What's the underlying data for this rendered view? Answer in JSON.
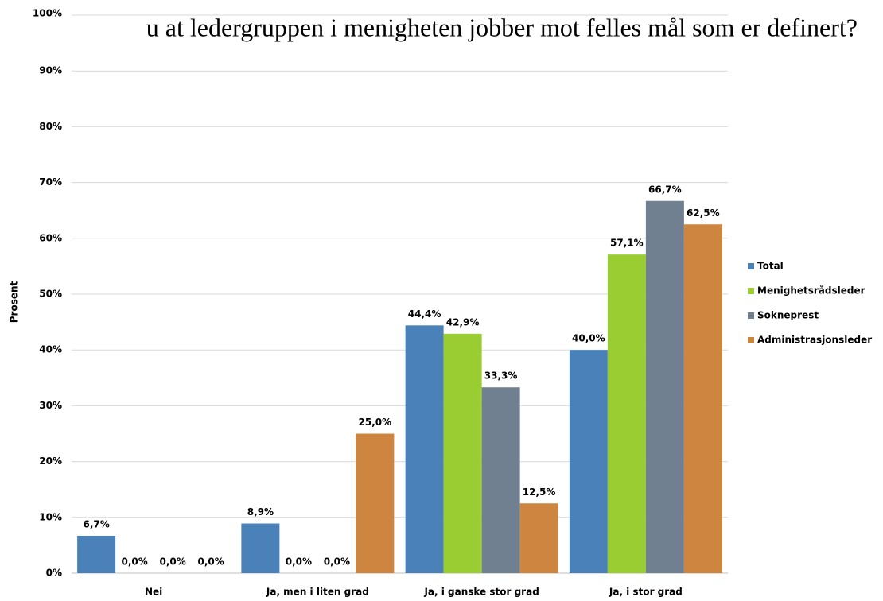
{
  "chart_data": {
    "type": "bar",
    "title": "u at ledergruppen i menigheten jobber mot felles mål som er definert?",
    "y_label": "Prosent",
    "categories": [
      "Nei",
      "Ja, men i liten grad",
      "Ja, i ganske stor grad",
      "Ja, i stor grad"
    ],
    "series": [
      {
        "name": "Total",
        "color": "#4a81b8",
        "values": [
          6.7,
          8.9,
          44.4,
          40.0
        ],
        "value_labels": [
          "6,7%",
          "8,9%",
          "44,4%",
          "40,0%"
        ]
      },
      {
        "name": "Menighetsrådsleder",
        "color": "#9acd32",
        "values": [
          0,
          0,
          42.9,
          57.1
        ],
        "value_labels": [
          "0,0%",
          "0,0%",
          "42,9%",
          "57,1%"
        ]
      },
      {
        "name": "Sokneprest",
        "color": "#708090",
        "values": [
          0,
          0,
          33.3,
          66.7
        ],
        "value_labels": [
          "0,0%",
          "0,0%",
          "33,3%",
          "66,7%"
        ]
      },
      {
        "name": "Administrasjonsleder",
        "color": "#cd853f",
        "values": [
          0,
          25.0,
          12.5,
          62.5
        ],
        "value_labels": [
          "0,0%",
          "25,0%",
          "12,5%",
          "62,5%"
        ]
      }
    ],
    "ylim": [
      0,
      100
    ],
    "yticks": [
      {
        "value": 0,
        "label": "0%"
      },
      {
        "value": 10,
        "label": "10%"
      },
      {
        "value": 20,
        "label": "20%"
      },
      {
        "value": 30,
        "label": "30%"
      },
      {
        "value": 40,
        "label": "40%"
      },
      {
        "value": 50,
        "label": "50%"
      },
      {
        "value": 60,
        "label": "60%"
      },
      {
        "value": 70,
        "label": "70%"
      },
      {
        "value": 80,
        "label": "80%"
      },
      {
        "value": 90,
        "label": "90%"
      },
      {
        "value": 100,
        "label": "100%"
      }
    ],
    "grid": true,
    "legend": "right"
  }
}
